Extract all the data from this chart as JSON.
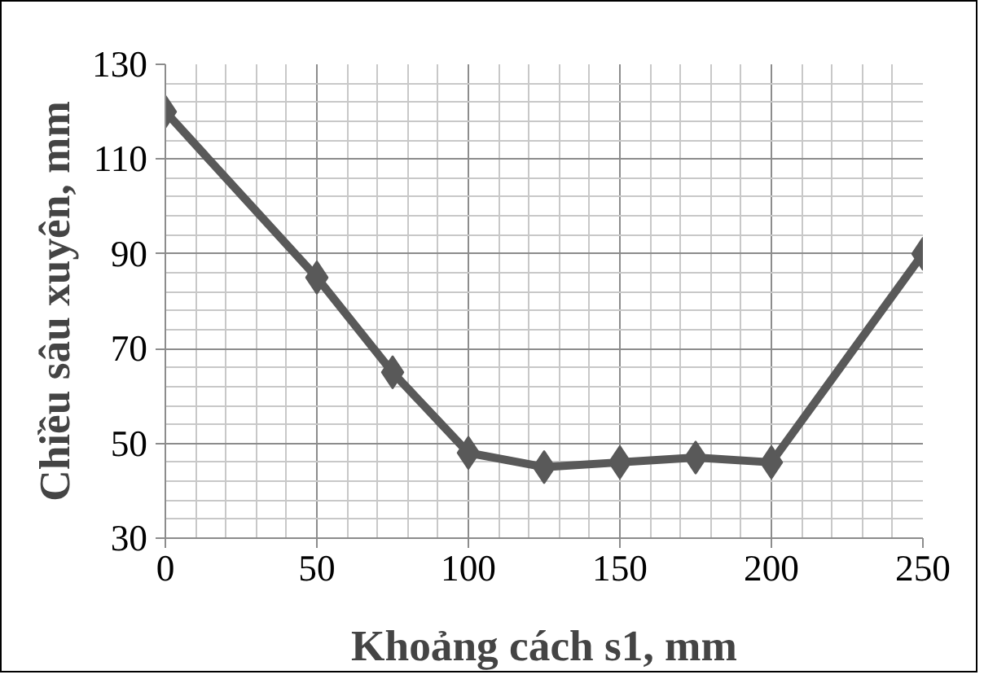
{
  "chart_data": {
    "type": "line",
    "xlabel": "Khoảng cách s1, mm",
    "ylabel": "Chiều sâu xuyên, mm",
    "x": [
      0,
      50,
      75,
      100,
      125,
      150,
      175,
      200,
      250
    ],
    "series": [
      {
        "color": "#595959",
        "values": [
          120,
          85,
          65,
          48,
          45,
          46,
          47,
          46,
          90
        ]
      }
    ],
    "xlim": [
      0,
      250
    ],
    "xticks": [
      0,
      50,
      100,
      150,
      200,
      250
    ],
    "ylim": [
      30,
      130
    ],
    "yticks": [
      30,
      50,
      70,
      90,
      110,
      130
    ],
    "grid": true,
    "marker": "diamond",
    "line_style": "solid"
  }
}
